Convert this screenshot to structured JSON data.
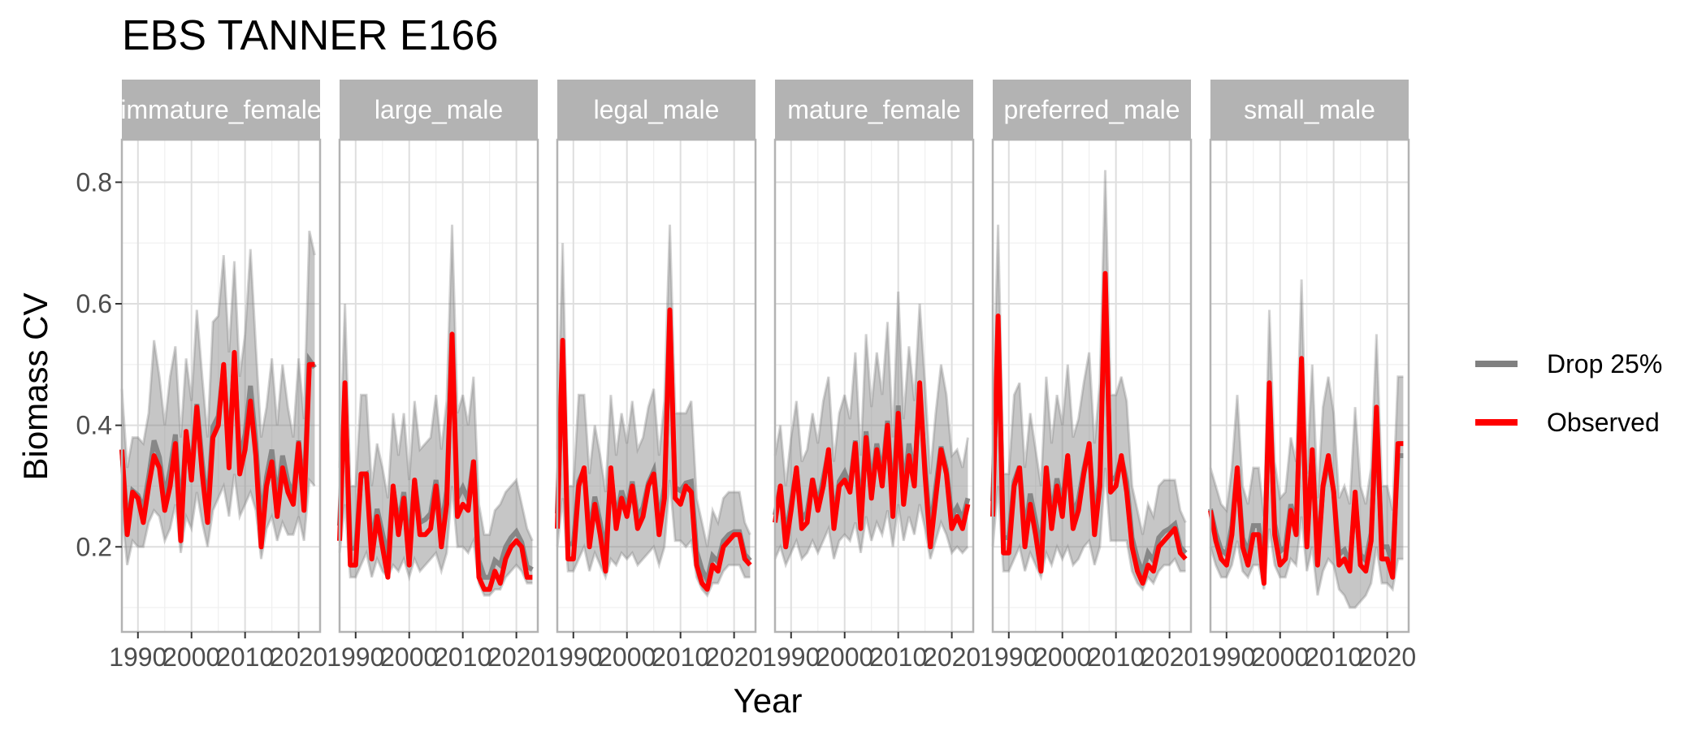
{
  "chart_data": {
    "type": "line",
    "title": "EBS TANNER E166",
    "xlabel": "Year",
    "ylabel": "Biomass CV",
    "xlim": [
      1987,
      2024
    ],
    "ylim": [
      0.06,
      0.87
    ],
    "x_ticks": [
      1990,
      2000,
      2010,
      2020
    ],
    "x_tick_labels": [
      "1990",
      "2000",
      "2010",
      "2020"
    ],
    "y_ticks": [
      0.2,
      0.4,
      0.6,
      0.8
    ],
    "y_tick_labels": [
      "0.2",
      "0.4",
      "0.6",
      "0.8"
    ],
    "grid": true,
    "legend_placement": "right",
    "colors": {
      "drop": "#808080",
      "observed": "#ff0000",
      "strip": "#b3b3b3",
      "panel_border": "#b3b3b3",
      "grid_major": "#dedede",
      "grid_minor": "#efefef"
    },
    "legend": [
      {
        "label": "Drop 25%",
        "color": "#808080"
      },
      {
        "label": "Observed",
        "color": "#ff0000"
      }
    ],
    "panels": [
      {
        "label": "immature_female",
        "observed": {
          "x": [
            1987,
            1988,
            1989,
            1990,
            1991,
            1992,
            1993,
            1994,
            1995,
            1996,
            1997,
            1998,
            1999,
            2000,
            2001,
            2002,
            2003,
            2004,
            2005,
            2006,
            2007,
            2008,
            2009,
            2010,
            2011,
            2012,
            2013,
            2014,
            2015,
            2016,
            2017,
            2018,
            2019,
            2020,
            2021,
            2022,
            2023
          ],
          "y": [
            0.36,
            0.22,
            0.29,
            0.28,
            0.24,
            0.3,
            0.35,
            0.33,
            0.26,
            0.3,
            0.37,
            0.21,
            0.39,
            0.31,
            0.43,
            0.32,
            0.24,
            0.38,
            0.4,
            0.5,
            0.33,
            0.52,
            0.32,
            0.36,
            0.44,
            0.35,
            0.2,
            0.3,
            0.34,
            0.25,
            0.33,
            0.29,
            0.27,
            0.37,
            0.26,
            0.5,
            0.5
          ]
        },
        "drop_25_max": [
          0.46,
          0.33,
          0.38,
          0.38,
          0.37,
          0.42,
          0.54,
          0.48,
          0.4,
          0.48,
          0.53,
          0.38,
          0.51,
          0.44,
          0.59,
          0.48,
          0.38,
          0.57,
          0.58,
          0.68,
          0.52,
          0.67,
          0.48,
          0.55,
          0.69,
          0.53,
          0.38,
          0.43,
          0.51,
          0.4,
          0.5,
          0.43,
          0.38,
          0.51,
          0.41,
          0.72,
          0.68
        ],
        "drop_25_min": [
          0.26,
          0.17,
          0.21,
          0.2,
          0.2,
          0.24,
          0.26,
          0.25,
          0.21,
          0.23,
          0.27,
          0.19,
          0.25,
          0.23,
          0.29,
          0.24,
          0.2,
          0.26,
          0.28,
          0.3,
          0.25,
          0.32,
          0.25,
          0.27,
          0.29,
          0.26,
          0.18,
          0.23,
          0.25,
          0.21,
          0.24,
          0.22,
          0.22,
          0.25,
          0.21,
          0.31,
          0.3
        ]
      },
      {
        "label": "large_male",
        "observed": {
          "x": [
            1987,
            1988,
            1989,
            1990,
            1991,
            1992,
            1993,
            1994,
            1995,
            1996,
            1997,
            1998,
            1999,
            2000,
            2001,
            2002,
            2003,
            2004,
            2005,
            2006,
            2007,
            2008,
            2009,
            2010,
            2011,
            2012,
            2013,
            2014,
            2015,
            2016,
            2017,
            2018,
            2019,
            2020,
            2021,
            2022,
            2023
          ],
          "y": [
            0.21,
            0.47,
            0.17,
            0.17,
            0.32,
            0.32,
            0.18,
            0.25,
            0.2,
            0.15,
            0.3,
            0.22,
            0.28,
            0.17,
            0.31,
            0.22,
            0.22,
            0.23,
            0.3,
            0.2,
            0.27,
            0.55,
            0.25,
            0.27,
            0.26,
            0.34,
            0.15,
            0.13,
            0.13,
            0.16,
            0.14,
            0.18,
            0.2,
            0.21,
            0.2,
            0.15,
            0.15
          ]
        },
        "drop_25_max": [
          0.33,
          0.6,
          0.3,
          0.3,
          0.45,
          0.45,
          0.3,
          0.37,
          0.33,
          0.28,
          0.42,
          0.35,
          0.42,
          0.31,
          0.44,
          0.36,
          0.37,
          0.38,
          0.45,
          0.36,
          0.44,
          0.73,
          0.42,
          0.45,
          0.4,
          0.48,
          0.27,
          0.22,
          0.22,
          0.26,
          0.27,
          0.29,
          0.3,
          0.31,
          0.27,
          0.23,
          0.21
        ],
        "drop_25_min": [
          0.19,
          0.27,
          0.15,
          0.15,
          0.17,
          0.19,
          0.15,
          0.18,
          0.16,
          0.15,
          0.17,
          0.16,
          0.18,
          0.15,
          0.18,
          0.16,
          0.17,
          0.18,
          0.19,
          0.16,
          0.19,
          0.3,
          0.2,
          0.2,
          0.19,
          0.21,
          0.14,
          0.12,
          0.12,
          0.13,
          0.13,
          0.15,
          0.16,
          0.17,
          0.16,
          0.14,
          0.14
        ]
      },
      {
        "label": "legal_male",
        "observed": {
          "x": [
            1987,
            1988,
            1989,
            1990,
            1991,
            1992,
            1993,
            1994,
            1995,
            1996,
            1997,
            1998,
            1999,
            2000,
            2001,
            2002,
            2003,
            2004,
            2005,
            2006,
            2007,
            2008,
            2009,
            2010,
            2011,
            2012,
            2013,
            2014,
            2015,
            2016,
            2017,
            2018,
            2019,
            2020,
            2021,
            2022,
            2023
          ],
          "y": [
            0.23,
            0.54,
            0.18,
            0.18,
            0.3,
            0.33,
            0.2,
            0.27,
            0.22,
            0.16,
            0.33,
            0.23,
            0.28,
            0.25,
            0.3,
            0.23,
            0.25,
            0.3,
            0.32,
            0.22,
            0.28,
            0.59,
            0.28,
            0.27,
            0.3,
            0.29,
            0.17,
            0.14,
            0.13,
            0.17,
            0.16,
            0.2,
            0.21,
            0.22,
            0.22,
            0.18,
            0.17
          ]
        },
        "drop_25_max": [
          0.36,
          0.7,
          0.3,
          0.3,
          0.45,
          0.45,
          0.32,
          0.4,
          0.35,
          0.29,
          0.45,
          0.35,
          0.42,
          0.37,
          0.44,
          0.36,
          0.38,
          0.43,
          0.46,
          0.35,
          0.44,
          0.73,
          0.42,
          0.42,
          0.42,
          0.44,
          0.28,
          0.24,
          0.2,
          0.26,
          0.24,
          0.28,
          0.29,
          0.29,
          0.29,
          0.24,
          0.22
        ],
        "drop_25_min": [
          0.2,
          0.28,
          0.16,
          0.16,
          0.18,
          0.2,
          0.16,
          0.19,
          0.17,
          0.15,
          0.18,
          0.17,
          0.19,
          0.18,
          0.19,
          0.17,
          0.18,
          0.19,
          0.2,
          0.17,
          0.2,
          0.31,
          0.21,
          0.21,
          0.2,
          0.21,
          0.15,
          0.13,
          0.12,
          0.14,
          0.14,
          0.16,
          0.17,
          0.17,
          0.17,
          0.15,
          0.15
        ]
      },
      {
        "label": "mature_female",
        "observed": {
          "x": [
            1987,
            1988,
            1989,
            1990,
            1991,
            1992,
            1993,
            1994,
            1995,
            1996,
            1997,
            1998,
            1999,
            2000,
            2001,
            2002,
            2003,
            2004,
            2005,
            2006,
            2007,
            2008,
            2009,
            2010,
            2011,
            2012,
            2013,
            2014,
            2015,
            2016,
            2017,
            2018,
            2019,
            2020,
            2021,
            2022,
            2023
          ],
          "y": [
            0.24,
            0.3,
            0.2,
            0.26,
            0.33,
            0.23,
            0.24,
            0.31,
            0.26,
            0.3,
            0.36,
            0.23,
            0.3,
            0.31,
            0.29,
            0.37,
            0.23,
            0.38,
            0.28,
            0.36,
            0.3,
            0.4,
            0.25,
            0.42,
            0.27,
            0.35,
            0.3,
            0.47,
            0.32,
            0.2,
            0.28,
            0.36,
            0.32,
            0.23,
            0.25,
            0.23,
            0.27
          ]
        },
        "drop_25_max": [
          0.35,
          0.4,
          0.3,
          0.38,
          0.44,
          0.34,
          0.36,
          0.42,
          0.37,
          0.44,
          0.48,
          0.34,
          0.42,
          0.45,
          0.41,
          0.52,
          0.35,
          0.55,
          0.43,
          0.52,
          0.45,
          0.57,
          0.38,
          0.62,
          0.41,
          0.53,
          0.44,
          0.6,
          0.47,
          0.32,
          0.42,
          0.5,
          0.45,
          0.35,
          0.36,
          0.33,
          0.38
        ],
        "drop_25_min": [
          0.18,
          0.2,
          0.17,
          0.19,
          0.21,
          0.18,
          0.19,
          0.21,
          0.19,
          0.21,
          0.23,
          0.18,
          0.21,
          0.22,
          0.21,
          0.24,
          0.19,
          0.25,
          0.21,
          0.24,
          0.22,
          0.26,
          0.2,
          0.27,
          0.21,
          0.25,
          0.22,
          0.27,
          0.23,
          0.18,
          0.21,
          0.24,
          0.22,
          0.19,
          0.2,
          0.19,
          0.2
        ]
      },
      {
        "label": "preferred_male",
        "observed": {
          "x": [
            1987,
            1988,
            1989,
            1990,
            1991,
            1992,
            1993,
            1994,
            1995,
            1996,
            1997,
            1998,
            1999,
            2000,
            2001,
            2002,
            2003,
            2004,
            2005,
            2006,
            2007,
            2008,
            2009,
            2010,
            2011,
            2012,
            2013,
            2014,
            2015,
            2016,
            2017,
            2018,
            2019,
            2020,
            2021,
            2022,
            2023
          ],
          "y": [
            0.25,
            0.58,
            0.19,
            0.19,
            0.3,
            0.33,
            0.2,
            0.27,
            0.22,
            0.16,
            0.33,
            0.23,
            0.3,
            0.25,
            0.35,
            0.23,
            0.26,
            0.32,
            0.37,
            0.22,
            0.3,
            0.65,
            0.29,
            0.3,
            0.35,
            0.29,
            0.2,
            0.16,
            0.14,
            0.17,
            0.16,
            0.2,
            0.21,
            0.22,
            0.23,
            0.19,
            0.18
          ]
        },
        "drop_25_max": [
          0.4,
          0.73,
          0.32,
          0.32,
          0.45,
          0.47,
          0.33,
          0.42,
          0.36,
          0.3,
          0.48,
          0.37,
          0.45,
          0.4,
          0.5,
          0.38,
          0.41,
          0.47,
          0.52,
          0.37,
          0.47,
          0.82,
          0.45,
          0.45,
          0.48,
          0.44,
          0.3,
          0.26,
          0.22,
          0.27,
          0.25,
          0.3,
          0.31,
          0.31,
          0.31,
          0.26,
          0.24
        ],
        "drop_25_min": [
          0.2,
          0.3,
          0.16,
          0.16,
          0.18,
          0.2,
          0.16,
          0.19,
          0.17,
          0.15,
          0.19,
          0.17,
          0.2,
          0.18,
          0.2,
          0.17,
          0.18,
          0.2,
          0.21,
          0.17,
          0.2,
          0.33,
          0.21,
          0.21,
          0.21,
          0.21,
          0.16,
          0.14,
          0.13,
          0.15,
          0.14,
          0.16,
          0.17,
          0.17,
          0.18,
          0.16,
          0.16
        ]
      },
      {
        "label": "small_male",
        "observed": {
          "x": [
            1987,
            1988,
            1989,
            1990,
            1991,
            1992,
            1993,
            1994,
            1995,
            1996,
            1997,
            1998,
            1999,
            2000,
            2001,
            2002,
            2003,
            2004,
            2005,
            2006,
            2007,
            2008,
            2009,
            2010,
            2011,
            2012,
            2013,
            2014,
            2015,
            2016,
            2017,
            2018,
            2019,
            2020,
            2021,
            2022,
            2023
          ],
          "y": [
            0.26,
            0.21,
            0.18,
            0.17,
            0.22,
            0.33,
            0.2,
            0.17,
            0.22,
            0.22,
            0.14,
            0.47,
            0.22,
            0.17,
            0.18,
            0.26,
            0.22,
            0.51,
            0.2,
            0.36,
            0.17,
            0.3,
            0.35,
            0.29,
            0.17,
            0.18,
            0.16,
            0.29,
            0.17,
            0.16,
            0.21,
            0.43,
            0.18,
            0.18,
            0.15,
            0.37,
            0.37
          ]
        },
        "drop_25_max": [
          0.33,
          0.3,
          0.27,
          0.26,
          0.33,
          0.45,
          0.3,
          0.27,
          0.33,
          0.33,
          0.25,
          0.59,
          0.34,
          0.28,
          0.29,
          0.38,
          0.34,
          0.64,
          0.32,
          0.5,
          0.28,
          0.43,
          0.48,
          0.42,
          0.28,
          0.3,
          0.27,
          0.43,
          0.3,
          0.27,
          0.33,
          0.55,
          0.3,
          0.3,
          0.26,
          0.48,
          0.48
        ],
        "drop_25_min": [
          0.2,
          0.17,
          0.15,
          0.15,
          0.17,
          0.21,
          0.16,
          0.15,
          0.17,
          0.17,
          0.13,
          0.23,
          0.17,
          0.15,
          0.15,
          0.18,
          0.17,
          0.25,
          0.16,
          0.2,
          0.12,
          0.16,
          0.18,
          0.17,
          0.13,
          0.12,
          0.1,
          0.1,
          0.11,
          0.12,
          0.14,
          0.2,
          0.14,
          0.14,
          0.13,
          0.18,
          0.18
        ]
      }
    ]
  }
}
